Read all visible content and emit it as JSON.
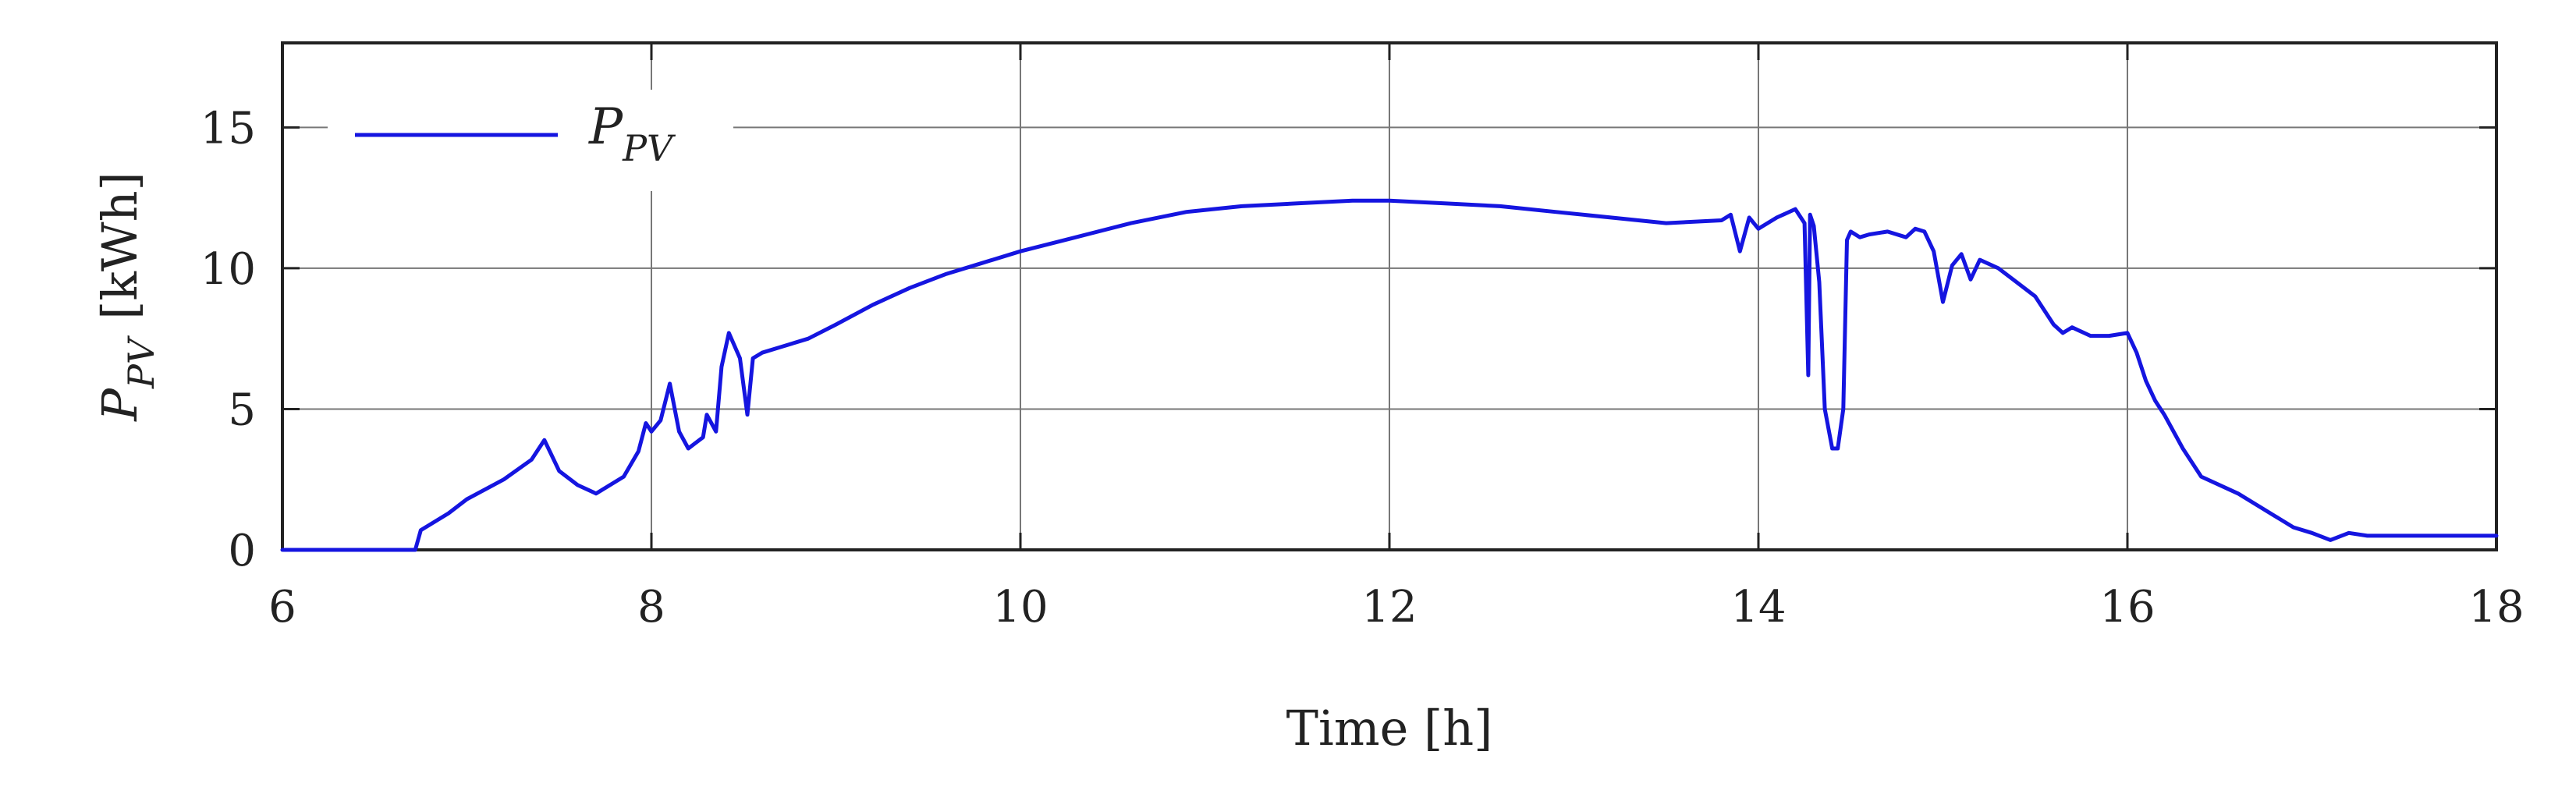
{
  "chart_data": {
    "type": "line",
    "title": "",
    "xlabel": "Time [h]",
    "ylabel_symbol": "P",
    "ylabel_subscript": "PV",
    "ylabel_unit": "[kWh]",
    "xlim": [
      6,
      18
    ],
    "ylim": [
      0,
      18
    ],
    "xticks": [
      "6",
      "8",
      "10",
      "12",
      "14",
      "16",
      "18"
    ],
    "yticks": [
      "0",
      "5",
      "10",
      "15"
    ],
    "grid": true,
    "legend_position": "top-left",
    "series": [
      {
        "name_symbol": "P",
        "name_subscript": "PV",
        "color": "#1515e0",
        "x": [
          6.0,
          6.72,
          6.75,
          6.9,
          7.0,
          7.2,
          7.35,
          7.42,
          7.5,
          7.6,
          7.7,
          7.85,
          7.93,
          7.97,
          8.0,
          8.05,
          8.1,
          8.15,
          8.2,
          8.28,
          8.3,
          8.35,
          8.38,
          8.42,
          8.48,
          8.52,
          8.55,
          8.6,
          8.7,
          8.85,
          9.0,
          9.2,
          9.4,
          9.6,
          9.8,
          10.0,
          10.3,
          10.6,
          10.9,
          11.2,
          11.5,
          11.8,
          12.0,
          12.3,
          12.6,
          12.9,
          13.2,
          13.5,
          13.8,
          13.85,
          13.9,
          13.95,
          14.0,
          14.1,
          14.2,
          14.25,
          14.27,
          14.28,
          14.3,
          14.33,
          14.36,
          14.4,
          14.43,
          14.46,
          14.48,
          14.5,
          14.55,
          14.6,
          14.7,
          14.8,
          14.85,
          14.9,
          14.95,
          15.0,
          15.05,
          15.1,
          15.15,
          15.2,
          15.3,
          15.4,
          15.5,
          15.6,
          15.65,
          15.7,
          15.8,
          15.9,
          16.0,
          16.05,
          16.1,
          16.15,
          16.2,
          16.3,
          16.4,
          16.6,
          16.8,
          16.9,
          17.0,
          17.1,
          17.2,
          17.3,
          17.4,
          17.5,
          18.0
        ],
        "y": [
          0.0,
          0.0,
          0.7,
          1.3,
          1.8,
          2.5,
          3.2,
          3.9,
          2.8,
          2.3,
          2.0,
          2.6,
          3.5,
          4.5,
          4.2,
          4.6,
          5.9,
          4.2,
          3.6,
          4.0,
          4.8,
          4.2,
          6.5,
          7.7,
          6.8,
          4.8,
          6.8,
          7.0,
          7.2,
          7.5,
          8.0,
          8.7,
          9.3,
          9.8,
          10.2,
          10.6,
          11.1,
          11.6,
          12.0,
          12.2,
          12.3,
          12.4,
          12.4,
          12.3,
          12.2,
          12.0,
          11.8,
          11.6,
          11.7,
          11.9,
          10.6,
          11.8,
          11.4,
          11.8,
          12.1,
          11.6,
          6.2,
          11.9,
          11.5,
          9.5,
          5.0,
          3.6,
          3.6,
          5.0,
          11.0,
          11.3,
          11.1,
          11.2,
          11.3,
          11.1,
          11.4,
          11.3,
          10.6,
          8.8,
          10.1,
          10.5,
          9.6,
          10.3,
          10.0,
          9.5,
          9.0,
          8.0,
          7.7,
          7.9,
          7.6,
          7.6,
          7.7,
          7.0,
          6.0,
          5.3,
          4.8,
          3.6,
          2.6,
          2.0,
          1.2,
          0.8,
          0.6,
          0.35,
          0.6,
          0.5,
          0.5,
          0.5,
          0.5
        ]
      }
    ]
  }
}
